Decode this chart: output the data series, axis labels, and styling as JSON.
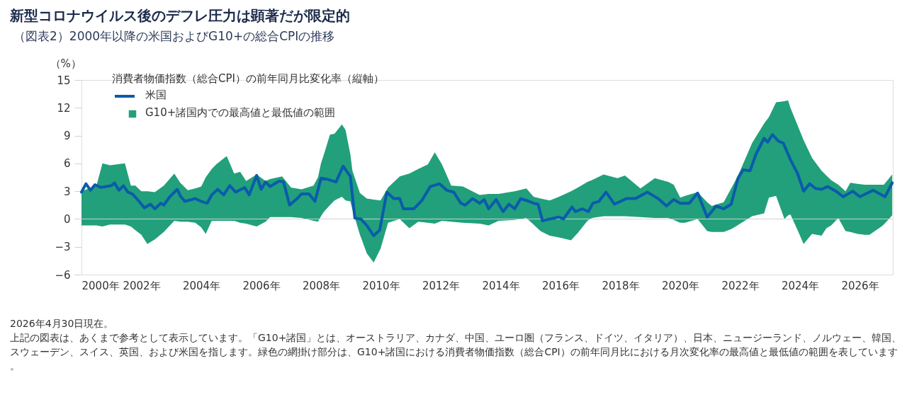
{
  "chart_data": {
    "type": "line",
    "title": "新型コロナウイルス後のデフレ圧力は顕著だが限定的",
    "subtitle": "（図表2）2000年以降の米国およびG10+の総合CPIの推移",
    "ylabel": "（%）",
    "legend_title": "消費者物価指数（総合CPI）の前年同月比変化率（縦軸）",
    "legend": "top left",
    "grid": false,
    "xlim": [
      2000,
      2027.1
    ],
    "xticks": [
      {
        "value": 2000,
        "label": "2000年"
      },
      {
        "value": 2002,
        "label": "2002年"
      },
      {
        "value": 2004,
        "label": "2004年"
      },
      {
        "value": 2006,
        "label": "2006年"
      },
      {
        "value": 2008,
        "label": "2008年"
      },
      {
        "value": 2010,
        "label": "2010年"
      },
      {
        "value": 2012,
        "label": "2012年"
      },
      {
        "value": 2014,
        "label": "2014年"
      },
      {
        "value": 2016,
        "label": "2016年"
      },
      {
        "value": 2018,
        "label": "2018年"
      },
      {
        "value": 2020,
        "label": "2020年"
      },
      {
        "value": 2022,
        "label": "2022年"
      },
      {
        "value": 2024,
        "label": "2024年"
      },
      {
        "value": 2026,
        "label": "2026年"
      }
    ],
    "ylim": [
      -6,
      15
    ],
    "yticks": [
      -6,
      -3,
      0,
      3,
      6,
      9,
      12,
      15
    ],
    "ref_lines": [
      {
        "axis": "y",
        "value": 0,
        "color": "#d0d0d0"
      }
    ],
    "series": [
      {
        "name": "G10+諸国内での最高値と最低値の範囲",
        "type": "area",
        "color": "#22a07b",
        "values": [
          null,
          null,
          null,
          null,
          null,
          null,
          null,
          null,
          null,
          null,
          null,
          null,
          null,
          null,
          null,
          null,
          null,
          null,
          null,
          null,
          null,
          null,
          null,
          null,
          null,
          null,
          null,
          null,
          null,
          null,
          null,
          null,
          null,
          null,
          null,
          null,
          null,
          null,
          null,
          null,
          null,
          null,
          null,
          null,
          null,
          null,
          null,
          null,
          null,
          null,
          null,
          null,
          null,
          null,
          null,
          null,
          null,
          null,
          null,
          null,
          null,
          null,
          null,
          null,
          null,
          null,
          null,
          null,
          null,
          null,
          null,
          null,
          null,
          null,
          null,
          null,
          null,
          null,
          null,
          null,
          null,
          null,
          null,
          null,
          null,
          null,
          null,
          null,
          null,
          null,
          null,
          null,
          null,
          null,
          null,
          null,
          null,
          null,
          null,
          null,
          null,
          null,
          null
        ],
        "x": [
          2000.0,
          2000.5,
          2000.7,
          2000.95,
          2001.45,
          2001.65,
          2001.8,
          2002.0,
          2002.2,
          2002.45,
          2002.75,
          2003.1,
          2003.3,
          2003.55,
          2003.8,
          2004.0,
          2004.15,
          2004.35,
          2004.5,
          2004.85,
          2005.1,
          2005.3,
          2005.5,
          2005.85,
          2006.15,
          2006.3,
          2006.7,
          2007.0,
          2007.35,
          2007.75,
          2007.9,
          2008.0,
          2008.1,
          2008.3,
          2008.45,
          2008.7,
          2008.82,
          2008.98,
          2009.05,
          2009.3,
          2009.53,
          2009.76,
          2009.99,
          2010.24,
          2010.63,
          2010.95,
          2011.25,
          2011.57,
          2011.8,
          2012.04,
          2012.35,
          2012.74,
          2013.3,
          2013.6,
          2013.93,
          2014.47,
          2014.86,
          2015.1,
          2015.33,
          2015.64,
          2015.95,
          2016.35,
          2016.58,
          2016.9,
          2017.05,
          2017.44,
          2017.9,
          2018.15,
          2018.67,
          2019.15,
          2019.6,
          2019.78,
          2020.0,
          2020.16,
          2020.58,
          2020.9,
          2021.05,
          2021.45,
          2021.7,
          2021.85,
          2022.0,
          2022.4,
          2022.8,
          2022.96,
          2023.2,
          2023.48,
          2023.6,
          2023.68,
          2023.92,
          2024.12,
          2024.4,
          2024.72,
          2024.88,
          2025.04,
          2025.28,
          2025.52,
          2025.68,
          2025.92,
          2026.16,
          2026.32,
          2026.72,
          2026.8,
          2027.08
        ],
        "upper": [
          3.0,
          3.6,
          6.0,
          5.8,
          6.0,
          3.6,
          3.6,
          3.0,
          3.0,
          2.9,
          3.6,
          4.9,
          3.9,
          3.1,
          3.3,
          3.5,
          4.5,
          5.4,
          5.9,
          6.8,
          4.9,
          5.1,
          4.1,
          4.8,
          4.1,
          4.3,
          4.6,
          3.4,
          3.2,
          3.6,
          4.5,
          6.0,
          7.0,
          9.1,
          9.2,
          10.2,
          9.6,
          7.0,
          5.2,
          2.8,
          2.2,
          2.1,
          2.0,
          3.4,
          4.6,
          4.9,
          5.4,
          5.9,
          7.2,
          5.9,
          3.6,
          3.5,
          2.6,
          2.7,
          2.7,
          3.0,
          3.3,
          2.4,
          2.2,
          2.0,
          2.4,
          3.0,
          3.4,
          4.0,
          4.2,
          4.8,
          4.4,
          4.7,
          3.3,
          4.4,
          4.0,
          3.7,
          2.3,
          2.5,
          2.9,
          1.8,
          1.4,
          1.8,
          3.3,
          4.2,
          5.2,
          8.2,
          10.3,
          11.0,
          12.6,
          12.7,
          12.8,
          12.0,
          10.1,
          8.5,
          6.6,
          5.2,
          4.7,
          4.2,
          3.7,
          3.0,
          3.9,
          3.8,
          3.7,
          3.7,
          3.7,
          3.7,
          4.8
        ],
        "lower": [
          -0.7,
          -0.7,
          -0.8,
          -0.6,
          -0.6,
          -0.8,
          -1.2,
          -1.7,
          -2.7,
          -2.2,
          -1.4,
          -0.2,
          -0.3,
          -0.3,
          -0.4,
          -0.9,
          -1.6,
          -0.2,
          -0.2,
          -0.2,
          -0.2,
          -0.4,
          -0.5,
          -0.8,
          -0.3,
          0.2,
          0.2,
          0.2,
          0.1,
          -0.2,
          -0.3,
          0.3,
          0.8,
          1.5,
          2.0,
          2.4,
          2.0,
          1.9,
          1.0,
          -1.7,
          -3.7,
          -4.7,
          -3.2,
          -0.4,
          0.0,
          -1.0,
          -0.3,
          -0.4,
          -0.5,
          -0.2,
          -0.3,
          -0.4,
          -0.5,
          -0.7,
          -0.2,
          -0.1,
          0.1,
          -0.6,
          -1.3,
          -1.8,
          -2.0,
          -2.3,
          -1.5,
          -0.2,
          0.1,
          0.3,
          0.3,
          0.3,
          0.2,
          0.1,
          0.1,
          -0.1,
          -0.4,
          -0.4,
          0.0,
          -1.3,
          -1.4,
          -1.4,
          -1.1,
          -0.8,
          -0.5,
          0.3,
          0.6,
          2.3,
          2.5,
          0.0,
          0.4,
          0.5,
          -1.2,
          -2.7,
          -1.6,
          -1.8,
          -1.0,
          -0.7,
          0.1,
          -1.3,
          -1.4,
          -1.6,
          -1.7,
          -1.7,
          -0.8,
          -0.6,
          0.4
        ]
      },
      {
        "name": "米国",
        "type": "line",
        "color": "#0a5bab",
        "x": [
          2000.0,
          2000.15,
          2000.3,
          2000.45,
          2000.65,
          2001.0,
          2001.1,
          2001.25,
          2001.4,
          2001.55,
          2001.7,
          2001.9,
          2002.1,
          2002.3,
          2002.45,
          2002.65,
          2002.75,
          2002.95,
          2003.2,
          2003.3,
          2003.45,
          2003.8,
          2004.0,
          2004.2,
          2004.35,
          2004.55,
          2004.75,
          2004.95,
          2005.15,
          2005.45,
          2005.6,
          2005.85,
          2006.0,
          2006.15,
          2006.3,
          2006.6,
          2006.75,
          2006.95,
          2007.2,
          2007.35,
          2007.6,
          2007.8,
          2008.0,
          2008.2,
          2008.5,
          2008.74,
          2008.98,
          2009.13,
          2009.33,
          2009.53,
          2009.76,
          2009.96,
          2010.2,
          2010.43,
          2010.63,
          2010.75,
          2011.1,
          2011.37,
          2011.65,
          2011.96,
          2012.2,
          2012.43,
          2012.67,
          2012.82,
          2013.06,
          2013.3,
          2013.45,
          2013.6,
          2013.85,
          2014.08,
          2014.28,
          2014.47,
          2014.67,
          2014.86,
          2015.1,
          2015.25,
          2015.4,
          2015.64,
          2015.95,
          2016.1,
          2016.38,
          2016.5,
          2016.73,
          2016.93,
          2017.08,
          2017.28,
          2017.52,
          2017.8,
          2018.2,
          2018.5,
          2018.9,
          2019.26,
          2019.54,
          2019.78,
          2020.0,
          2020.3,
          2020.58,
          2020.9,
          2021.2,
          2021.45,
          2021.7,
          2021.93,
          2022.1,
          2022.33,
          2022.53,
          2022.8,
          2022.92,
          2023.08,
          2023.28,
          2023.44,
          2023.68,
          2023.92,
          2024.12,
          2024.32,
          2024.52,
          2024.72,
          2024.92,
          2025.2,
          2025.44,
          2025.76,
          2026.0,
          2026.44,
          2026.84,
          2027.08
        ],
        "values": [
          2.9,
          3.8,
          3.1,
          3.7,
          3.4,
          3.6,
          3.9,
          3.1,
          3.6,
          2.9,
          2.7,
          2.0,
          1.2,
          1.6,
          1.1,
          1.7,
          1.5,
          2.4,
          3.2,
          2.5,
          1.9,
          2.2,
          1.9,
          1.7,
          2.6,
          3.2,
          2.6,
          3.6,
          2.9,
          3.4,
          2.6,
          4.7,
          3.2,
          4.0,
          3.5,
          4.1,
          4.0,
          1.5,
          2.2,
          2.7,
          2.7,
          1.9,
          4.4,
          4.3,
          4.0,
          5.7,
          4.6,
          0.1,
          0.0,
          -0.7,
          -1.8,
          -1.2,
          2.9,
          2.2,
          2.2,
          1.1,
          1.1,
          2.0,
          3.5,
          3.8,
          3.1,
          2.9,
          1.7,
          1.5,
          2.2,
          1.7,
          2.1,
          1.1,
          2.1,
          0.8,
          1.6,
          1.1,
          2.2,
          2.0,
          1.7,
          1.6,
          -0.2,
          0.0,
          0.2,
          0.0,
          1.3,
          0.8,
          1.1,
          0.8,
          1.7,
          1.9,
          2.9,
          1.6,
          2.2,
          2.2,
          2.9,
          2.2,
          1.4,
          2.1,
          1.7,
          1.7,
          2.8,
          0.2,
          1.4,
          1.1,
          1.6,
          4.4,
          5.3,
          5.2,
          7.0,
          8.7,
          8.3,
          9.1,
          8.4,
          8.2,
          6.4,
          4.9,
          3.0,
          3.8,
          3.3,
          3.2,
          3.5,
          3.0,
          2.4,
          3.0,
          2.4,
          3.1,
          2.4,
          3.9
        ]
      }
    ],
    "annotations": [
      "2026年4月30日現在。",
      "上記の図表は、あくまで参考として表示しています。「G10+諸国」とは、オーストラリア、カナダ、中国、ユーロ圏（フランス、ドイツ、イタリア）、日本、ニュージーランド、ノルウェー、韓国、スウェーデン、スイス、英国、および米国を指します。緑色の網掛け部分は、G10+諸国における消費者物価指数（総合CPI）の前年同月比における月次変化率の最高値と最低値の範囲を表しています。"
    ]
  }
}
